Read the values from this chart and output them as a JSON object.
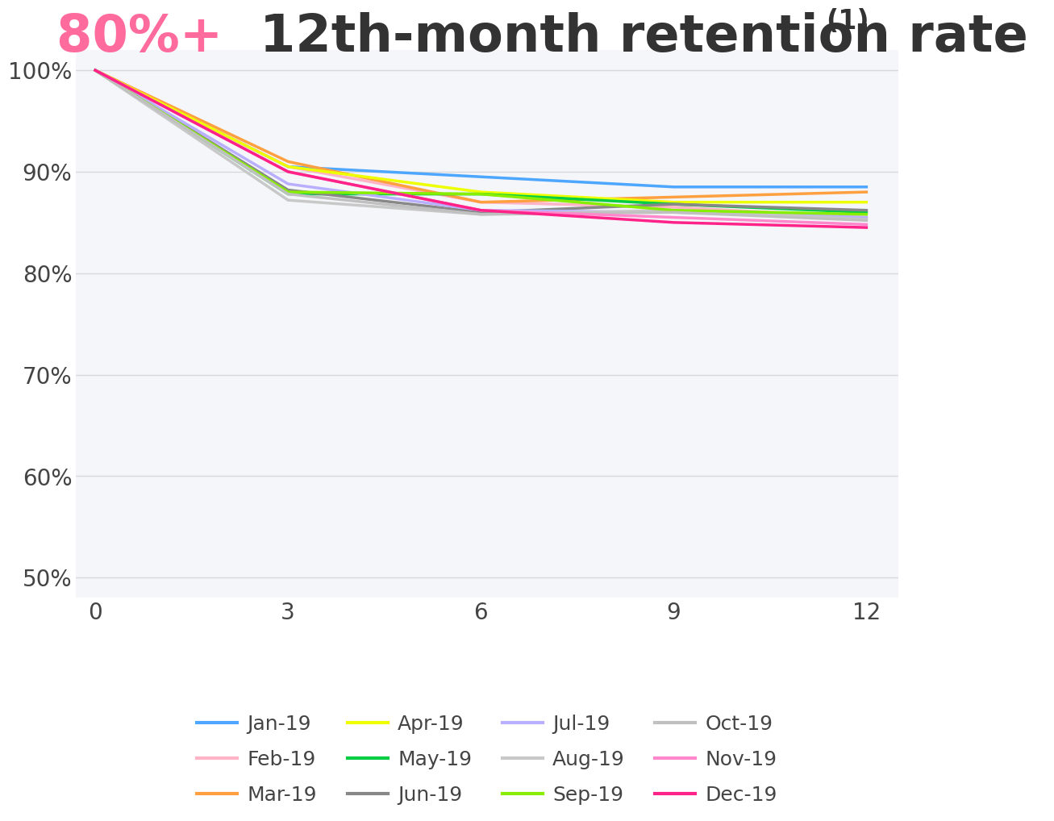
{
  "title_pink": "80%+ ",
  "title_dark": "12th-month retention rate ",
  "title_super": "(1)",
  "title_pink_color": "#FF6B9D",
  "title_dark_color": "#333333",
  "background_color": "#FFFFFF",
  "plot_bg_color": "#F5F6FA",
  "x_ticks": [
    0,
    3,
    6,
    9,
    12
  ],
  "y_ticks": [
    0.5,
    0.6,
    0.7,
    0.8,
    0.9,
    1.0
  ],
  "y_tick_labels": [
    "50%",
    "60%",
    "70%",
    "80%",
    "90%",
    "100%"
  ],
  "ylim": [
    0.48,
    1.02
  ],
  "xlim": [
    -0.3,
    12.5
  ],
  "series": {
    "Jan-19": {
      "color": "#4DA6FF",
      "data": [
        [
          0,
          1.0
        ],
        [
          3,
          0.905
        ],
        [
          6,
          0.895
        ],
        [
          9,
          0.885
        ],
        [
          12,
          0.885
        ]
      ]
    },
    "Feb-19": {
      "color": "#FFB3C6",
      "data": [
        [
          0,
          1.0
        ],
        [
          3,
          0.905
        ],
        [
          6,
          0.87
        ],
        [
          9,
          0.865
        ],
        [
          12,
          0.855
        ]
      ]
    },
    "Mar-19": {
      "color": "#FFA040",
      "data": [
        [
          0,
          1.0
        ],
        [
          3,
          0.91
        ],
        [
          6,
          0.87
        ],
        [
          9,
          0.875
        ],
        [
          12,
          0.88
        ]
      ]
    },
    "Apr-19": {
      "color": "#EEFF00",
      "data": [
        [
          0,
          1.0
        ],
        [
          3,
          0.905
        ],
        [
          6,
          0.88
        ],
        [
          9,
          0.87
        ],
        [
          12,
          0.87
        ]
      ]
    },
    "May-19": {
      "color": "#00CC44",
      "data": [
        [
          0,
          1.0
        ],
        [
          3,
          0.878
        ],
        [
          6,
          0.878
        ],
        [
          9,
          0.868
        ],
        [
          12,
          0.86
        ]
      ]
    },
    "Jun-19": {
      "color": "#888888",
      "data": [
        [
          0,
          1.0
        ],
        [
          3,
          0.882
        ],
        [
          6,
          0.86
        ],
        [
          9,
          0.868
        ],
        [
          12,
          0.862
        ]
      ]
    },
    "Jul-19": {
      "color": "#B8B0FF",
      "data": [
        [
          0,
          1.0
        ],
        [
          3,
          0.888
        ],
        [
          6,
          0.862
        ],
        [
          9,
          0.86
        ],
        [
          12,
          0.855
        ]
      ]
    },
    "Aug-19": {
      "color": "#C8C8C8",
      "data": [
        [
          0,
          1.0
        ],
        [
          3,
          0.872
        ],
        [
          6,
          0.858
        ],
        [
          9,
          0.862
        ],
        [
          12,
          0.853
        ]
      ]
    },
    "Sep-19": {
      "color": "#88EE00",
      "data": [
        [
          0,
          1.0
        ],
        [
          3,
          0.88
        ],
        [
          6,
          0.878
        ],
        [
          9,
          0.862
        ],
        [
          12,
          0.858
        ]
      ]
    },
    "Oct-19": {
      "color": "#C0C0C0",
      "data": [
        [
          0,
          1.0
        ],
        [
          3,
          0.878
        ],
        [
          6,
          0.858
        ],
        [
          9,
          0.86
        ],
        [
          12,
          0.852
        ]
      ]
    },
    "Nov-19": {
      "color": "#FF88CC",
      "data": [
        [
          0,
          1.0
        ],
        [
          3,
          0.9
        ],
        [
          6,
          0.862
        ],
        [
          9,
          0.855
        ],
        [
          12,
          0.848
        ]
      ]
    },
    "Dec-19": {
      "color": "#FF2288",
      "data": [
        [
          0,
          1.0
        ],
        [
          3,
          0.9
        ],
        [
          6,
          0.862
        ],
        [
          9,
          0.85
        ],
        [
          12,
          0.845
        ]
      ]
    }
  },
  "legend_order": [
    "Jan-19",
    "Feb-19",
    "Mar-19",
    "Apr-19",
    "May-19",
    "Jun-19",
    "Jul-19",
    "Aug-19",
    "Sep-19",
    "Oct-19",
    "Nov-19",
    "Dec-19"
  ],
  "line_width": 2.5,
  "grid_color": "#D8D8D8",
  "axis_label_color": "#444444",
  "tick_label_fontsize": 20,
  "legend_fontsize": 18,
  "title_fontsize_pink": 46,
  "title_fontsize_dark": 46,
  "title_fontsize_super": 24
}
